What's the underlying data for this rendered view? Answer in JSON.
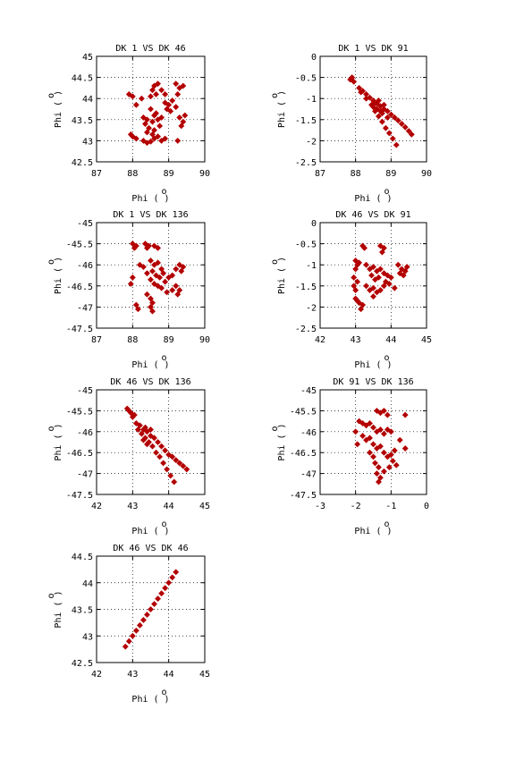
{
  "chart_data": [
    {
      "type": "scatter",
      "title": "DK  1 VS DK 46",
      "xlabel": "Phi",
      "ylabel": "Phi",
      "unit_superscript": "o",
      "xlim": [
        87,
        90
      ],
      "ylim": [
        42.5,
        45
      ],
      "xticks": [
        "87",
        "88",
        "89",
        "90"
      ],
      "yticks": [
        "42.5",
        "43",
        "43.5",
        "44",
        "44.5",
        "45"
      ],
      "grid": true,
      "color": "#b30000",
      "points": [
        [
          88.6,
          44.3
        ],
        [
          88.7,
          44.35
        ],
        [
          88.55,
          44.2
        ],
        [
          88.8,
          44.2
        ],
        [
          88.65,
          44.1
        ],
        [
          88.9,
          44.1
        ],
        [
          88.5,
          44.05
        ],
        [
          89.2,
          44.35
        ],
        [
          89.3,
          44.25
        ],
        [
          89.25,
          44.1
        ],
        [
          89.4,
          44.3
        ],
        [
          88.9,
          43.9
        ],
        [
          89.0,
          43.85
        ],
        [
          88.95,
          43.75
        ],
        [
          89.1,
          43.95
        ],
        [
          89.05,
          43.7
        ],
        [
          88.5,
          43.75
        ],
        [
          88.6,
          43.6
        ],
        [
          88.7,
          43.5
        ],
        [
          88.8,
          43.55
        ],
        [
          88.55,
          43.45
        ],
        [
          88.75,
          43.35
        ],
        [
          88.65,
          43.65
        ],
        [
          88.4,
          43.5
        ],
        [
          88.3,
          43.55
        ],
        [
          88.35,
          43.4
        ],
        [
          88.45,
          43.3
        ],
        [
          89.3,
          43.55
        ],
        [
          89.4,
          43.45
        ],
        [
          89.35,
          43.35
        ],
        [
          89.45,
          43.6
        ],
        [
          88.1,
          43.85
        ],
        [
          88.25,
          44.0
        ],
        [
          87.9,
          44.1
        ],
        [
          88.0,
          44.05
        ],
        [
          88.0,
          43.1
        ],
        [
          88.1,
          43.05
        ],
        [
          87.95,
          43.15
        ],
        [
          88.3,
          43.0
        ],
        [
          88.4,
          42.95
        ],
        [
          88.5,
          42.98
        ],
        [
          88.6,
          43.05
        ],
        [
          88.7,
          43.1
        ],
        [
          88.8,
          43.0
        ],
        [
          88.9,
          43.05
        ],
        [
          88.4,
          43.2
        ],
        [
          88.6,
          43.25
        ],
        [
          88.55,
          43.15
        ],
        [
          89.2,
          43.8
        ],
        [
          89.25,
          43.0
        ]
      ]
    },
    {
      "type": "scatter",
      "title": "DK  1 VS DK 91",
      "xlabel": "Phi",
      "ylabel": "Phi",
      "unit_superscript": "o",
      "xlim": [
        87,
        90
      ],
      "ylim": [
        -2.5,
        0
      ],
      "xticks": [
        "87",
        "88",
        "89",
        "90"
      ],
      "yticks": [
        "-2.5",
        "-2",
        "-1.5",
        "-1",
        "-0.5",
        "0"
      ],
      "grid": true,
      "color": "#b30000",
      "points": [
        [
          87.9,
          -0.5
        ],
        [
          87.85,
          -0.55
        ],
        [
          87.95,
          -0.6
        ],
        [
          88.1,
          -0.75
        ],
        [
          88.2,
          -0.82
        ],
        [
          88.3,
          -0.9
        ],
        [
          88.4,
          -0.98
        ],
        [
          88.5,
          -1.05
        ],
        [
          88.6,
          -1.12
        ],
        [
          88.7,
          -1.18
        ],
        [
          88.8,
          -1.25
        ],
        [
          88.9,
          -1.3
        ],
        [
          89.0,
          -1.38
        ],
        [
          89.1,
          -1.45
        ],
        [
          89.2,
          -1.52
        ],
        [
          89.3,
          -1.6
        ],
        [
          89.4,
          -1.68
        ],
        [
          89.5,
          -1.77
        ],
        [
          89.58,
          -1.85
        ],
        [
          88.15,
          -0.85
        ],
        [
          88.3,
          -1.0
        ],
        [
          88.45,
          -1.15
        ],
        [
          88.55,
          -1.3
        ],
        [
          88.65,
          -1.42
        ],
        [
          88.75,
          -1.55
        ],
        [
          88.85,
          -1.7
        ],
        [
          88.95,
          -1.82
        ],
        [
          89.05,
          -1.95
        ],
        [
          89.15,
          -2.1
        ],
        [
          88.5,
          -1.2
        ],
        [
          88.6,
          -1.25
        ],
        [
          88.7,
          -1.3
        ],
        [
          88.55,
          -1.1
        ],
        [
          88.65,
          -1.05
        ],
        [
          88.8,
          -1.15
        ],
        [
          88.75,
          -1.35
        ],
        [
          88.9,
          -1.45
        ]
      ]
    },
    {
      "type": "scatter",
      "title": "DK  1 VS DK 136",
      "xlabel": "Phi",
      "ylabel": "Phi",
      "unit_superscript": "o",
      "xlim": [
        87,
        90
      ],
      "ylim": [
        -47.5,
        -45
      ],
      "xticks": [
        "87",
        "88",
        "89",
        "90"
      ],
      "yticks": [
        "-47.5",
        "-47",
        "-46.5",
        "-46",
        "-45.5",
        "-45"
      ],
      "grid": true,
      "color": "#b30000",
      "points": [
        [
          88.0,
          -45.5
        ],
        [
          88.1,
          -45.55
        ],
        [
          88.05,
          -45.6
        ],
        [
          88.35,
          -45.5
        ],
        [
          88.45,
          -45.55
        ],
        [
          88.4,
          -45.6
        ],
        [
          88.6,
          -45.55
        ],
        [
          88.7,
          -45.6
        ],
        [
          88.5,
          -45.9
        ],
        [
          88.6,
          -46.0
        ],
        [
          88.7,
          -45.95
        ],
        [
          88.8,
          -46.1
        ],
        [
          88.55,
          -46.15
        ],
        [
          88.65,
          -46.25
        ],
        [
          88.75,
          -46.3
        ],
        [
          88.85,
          -46.2
        ],
        [
          88.5,
          -46.35
        ],
        [
          88.6,
          -46.45
        ],
        [
          88.7,
          -46.5
        ],
        [
          88.8,
          -46.55
        ],
        [
          88.9,
          -46.4
        ],
        [
          89.0,
          -46.3
        ],
        [
          89.1,
          -46.25
        ],
        [
          89.3,
          -46.0
        ],
        [
          89.4,
          -46.05
        ],
        [
          89.35,
          -46.15
        ],
        [
          89.2,
          -46.1
        ],
        [
          89.2,
          -46.5
        ],
        [
          89.3,
          -46.6
        ],
        [
          89.25,
          -46.7
        ],
        [
          89.1,
          -46.6
        ],
        [
          88.4,
          -46.7
        ],
        [
          88.5,
          -46.8
        ],
        [
          88.55,
          -46.9
        ],
        [
          88.5,
          -47.0
        ],
        [
          88.55,
          -47.1
        ],
        [
          88.0,
          -46.3
        ],
        [
          87.95,
          -46.45
        ],
        [
          88.3,
          -46.05
        ],
        [
          88.2,
          -46.0
        ],
        [
          88.1,
          -46.95
        ],
        [
          88.15,
          -47.05
        ],
        [
          88.4,
          -46.2
        ],
        [
          88.95,
          -46.65
        ]
      ]
    },
    {
      "type": "scatter",
      "title": "DK 46 VS DK 91",
      "xlabel": "Phi",
      "ylabel": "Phi",
      "unit_superscript": "o",
      "xlim": [
        42,
        45
      ],
      "ylim": [
        -2.5,
        0
      ],
      "xticks": [
        "42",
        "43",
        "44",
        "45"
      ],
      "yticks": [
        "-2.5",
        "-2",
        "-1.5",
        "-1",
        "-0.5",
        "0"
      ],
      "grid": true,
      "color": "#b30000",
      "points": [
        [
          43.2,
          -0.55
        ],
        [
          43.25,
          -0.6
        ],
        [
          43.7,
          -0.55
        ],
        [
          43.8,
          -0.6
        ],
        [
          43.75,
          -0.7
        ],
        [
          43.0,
          -0.9
        ],
        [
          43.05,
          -1.0
        ],
        [
          43.1,
          -0.95
        ],
        [
          43.0,
          -1.1
        ],
        [
          43.3,
          -1.0
        ],
        [
          43.4,
          -1.1
        ],
        [
          43.5,
          -1.05
        ],
        [
          43.6,
          -1.15
        ],
        [
          43.45,
          -1.25
        ],
        [
          43.55,
          -1.35
        ],
        [
          43.65,
          -1.3
        ],
        [
          43.7,
          -1.1
        ],
        [
          43.8,
          -1.2
        ],
        [
          43.9,
          -1.25
        ],
        [
          43.85,
          -1.4
        ],
        [
          43.95,
          -1.45
        ],
        [
          44.0,
          -1.3
        ],
        [
          44.2,
          -1.0
        ],
        [
          44.3,
          -1.1
        ],
        [
          44.25,
          -1.2
        ],
        [
          44.35,
          -1.25
        ],
        [
          44.4,
          -1.15
        ],
        [
          44.45,
          -1.05
        ],
        [
          43.3,
          -1.5
        ],
        [
          43.4,
          -1.6
        ],
        [
          43.5,
          -1.55
        ],
        [
          43.6,
          -1.65
        ],
        [
          43.7,
          -1.6
        ],
        [
          42.95,
          -1.5
        ],
        [
          43.0,
          -1.6
        ],
        [
          43.05,
          -1.4
        ],
        [
          43.0,
          -1.8
        ],
        [
          43.1,
          -1.9
        ],
        [
          43.2,
          -1.95
        ],
        [
          43.05,
          -1.85
        ],
        [
          43.15,
          -2.05
        ],
        [
          43.5,
          -1.75
        ],
        [
          43.8,
          -1.5
        ],
        [
          44.1,
          -1.55
        ],
        [
          42.95,
          -1.3
        ]
      ]
    },
    {
      "type": "scatter",
      "title": "DK 46 VS DK 136",
      "xlabel": "Phi",
      "ylabel": "Phi",
      "unit_superscript": "o",
      "xlim": [
        42,
        45
      ],
      "ylim": [
        -47.5,
        -45
      ],
      "xticks": [
        "42",
        "43",
        "44",
        "45"
      ],
      "yticks": [
        "-47.5",
        "-47",
        "-46.5",
        "-46",
        "-45.5",
        "-45"
      ],
      "grid": true,
      "color": "#b30000",
      "points": [
        [
          42.85,
          -45.45
        ],
        [
          42.9,
          -45.5
        ],
        [
          42.95,
          -45.55
        ],
        [
          43.0,
          -45.65
        ],
        [
          43.05,
          -45.6
        ],
        [
          43.1,
          -45.8
        ],
        [
          43.2,
          -45.85
        ],
        [
          43.3,
          -45.95
        ],
        [
          43.4,
          -46.0
        ],
        [
          43.5,
          -46.1
        ],
        [
          43.6,
          -46.15
        ],
        [
          43.7,
          -46.25
        ],
        [
          43.8,
          -46.35
        ],
        [
          43.9,
          -46.45
        ],
        [
          44.0,
          -46.55
        ],
        [
          44.1,
          -46.6
        ],
        [
          44.2,
          -46.68
        ],
        [
          44.3,
          -46.75
        ],
        [
          44.4,
          -46.82
        ],
        [
          44.5,
          -46.9
        ],
        [
          43.15,
          -45.95
        ],
        [
          43.25,
          -46.05
        ],
        [
          43.35,
          -46.15
        ],
        [
          43.45,
          -46.25
        ],
        [
          43.55,
          -46.35
        ],
        [
          43.65,
          -46.5
        ],
        [
          43.75,
          -46.6
        ],
        [
          43.85,
          -46.75
        ],
        [
          43.95,
          -46.9
        ],
        [
          44.05,
          -47.05
        ],
        [
          44.15,
          -47.2
        ],
        [
          43.3,
          -46.2
        ],
        [
          43.4,
          -46.3
        ],
        [
          43.35,
          -45.9
        ],
        [
          43.5,
          -45.95
        ]
      ]
    },
    {
      "type": "scatter",
      "title": "DK 91 VS DK 136",
      "xlabel": "Phi",
      "ylabel": "Phi",
      "unit_superscript": "o",
      "xlim": [
        -3,
        0
      ],
      "ylim": [
        -47.5,
        -45
      ],
      "xticks": [
        "-3",
        "-2",
        "-1",
        "0"
      ],
      "yticks": [
        "-47.5",
        "-47",
        "-46.5",
        "-46",
        "-45.5",
        "-45"
      ],
      "grid": true,
      "color": "#b30000",
      "points": [
        [
          -1.4,
          -45.5
        ],
        [
          -1.3,
          -45.55
        ],
        [
          -1.2,
          -45.5
        ],
        [
          -1.1,
          -45.6
        ],
        [
          -0.6,
          -45.6
        ],
        [
          -1.9,
          -45.75
        ],
        [
          -1.8,
          -45.8
        ],
        [
          -1.7,
          -45.85
        ],
        [
          -1.6,
          -45.8
        ],
        [
          -1.5,
          -45.9
        ],
        [
          -1.4,
          -46.0
        ],
        [
          -1.3,
          -45.95
        ],
        [
          -1.2,
          -46.05
        ],
        [
          -1.1,
          -45.95
        ],
        [
          -1.0,
          -46.0
        ],
        [
          -1.8,
          -46.1
        ],
        [
          -1.7,
          -46.2
        ],
        [
          -1.6,
          -46.15
        ],
        [
          -1.5,
          -46.3
        ],
        [
          -1.4,
          -46.4
        ],
        [
          -1.3,
          -46.35
        ],
        [
          -1.2,
          -46.5
        ],
        [
          -1.1,
          -46.6
        ],
        [
          -1.0,
          -46.55
        ],
        [
          -0.9,
          -46.45
        ],
        [
          -0.95,
          -46.7
        ],
        [
          -1.6,
          -46.5
        ],
        [
          -1.5,
          -46.6
        ],
        [
          -1.45,
          -46.75
        ],
        [
          -1.35,
          -46.85
        ],
        [
          -1.4,
          -47.0
        ],
        [
          -1.3,
          -47.1
        ],
        [
          -1.35,
          -47.2
        ],
        [
          -1.2,
          -46.95
        ],
        [
          -0.6,
          -46.4
        ],
        [
          -0.75,
          -46.2
        ],
        [
          -2.0,
          -46.0
        ],
        [
          -1.95,
          -46.3
        ],
        [
          -1.05,
          -46.85
        ],
        [
          -0.85,
          -46.8
        ]
      ]
    },
    {
      "type": "scatter",
      "title": "DK 46 VS DK 46",
      "xlabel": "Phi",
      "ylabel": "Phi",
      "unit_superscript": "o",
      "xlim": [
        42,
        45
      ],
      "ylim": [
        42.5,
        44.5
      ],
      "xticks": [
        "42",
        "43",
        "44",
        "45"
      ],
      "yticks": [
        "42.5",
        "43",
        "43.5",
        "44",
        "44.5"
      ],
      "grid": true,
      "color": "#b30000",
      "points": [
        [
          42.8,
          42.8
        ],
        [
          42.9,
          42.9
        ],
        [
          43.0,
          43.0
        ],
        [
          43.1,
          43.1
        ],
        [
          43.2,
          43.2
        ],
        [
          43.3,
          43.3
        ],
        [
          43.4,
          43.4
        ],
        [
          43.5,
          43.5
        ],
        [
          43.6,
          43.6
        ],
        [
          43.7,
          43.7
        ],
        [
          43.8,
          43.8
        ],
        [
          43.9,
          43.9
        ],
        [
          44.0,
          44.0
        ],
        [
          44.1,
          44.1
        ],
        [
          44.2,
          44.2
        ]
      ]
    }
  ]
}
